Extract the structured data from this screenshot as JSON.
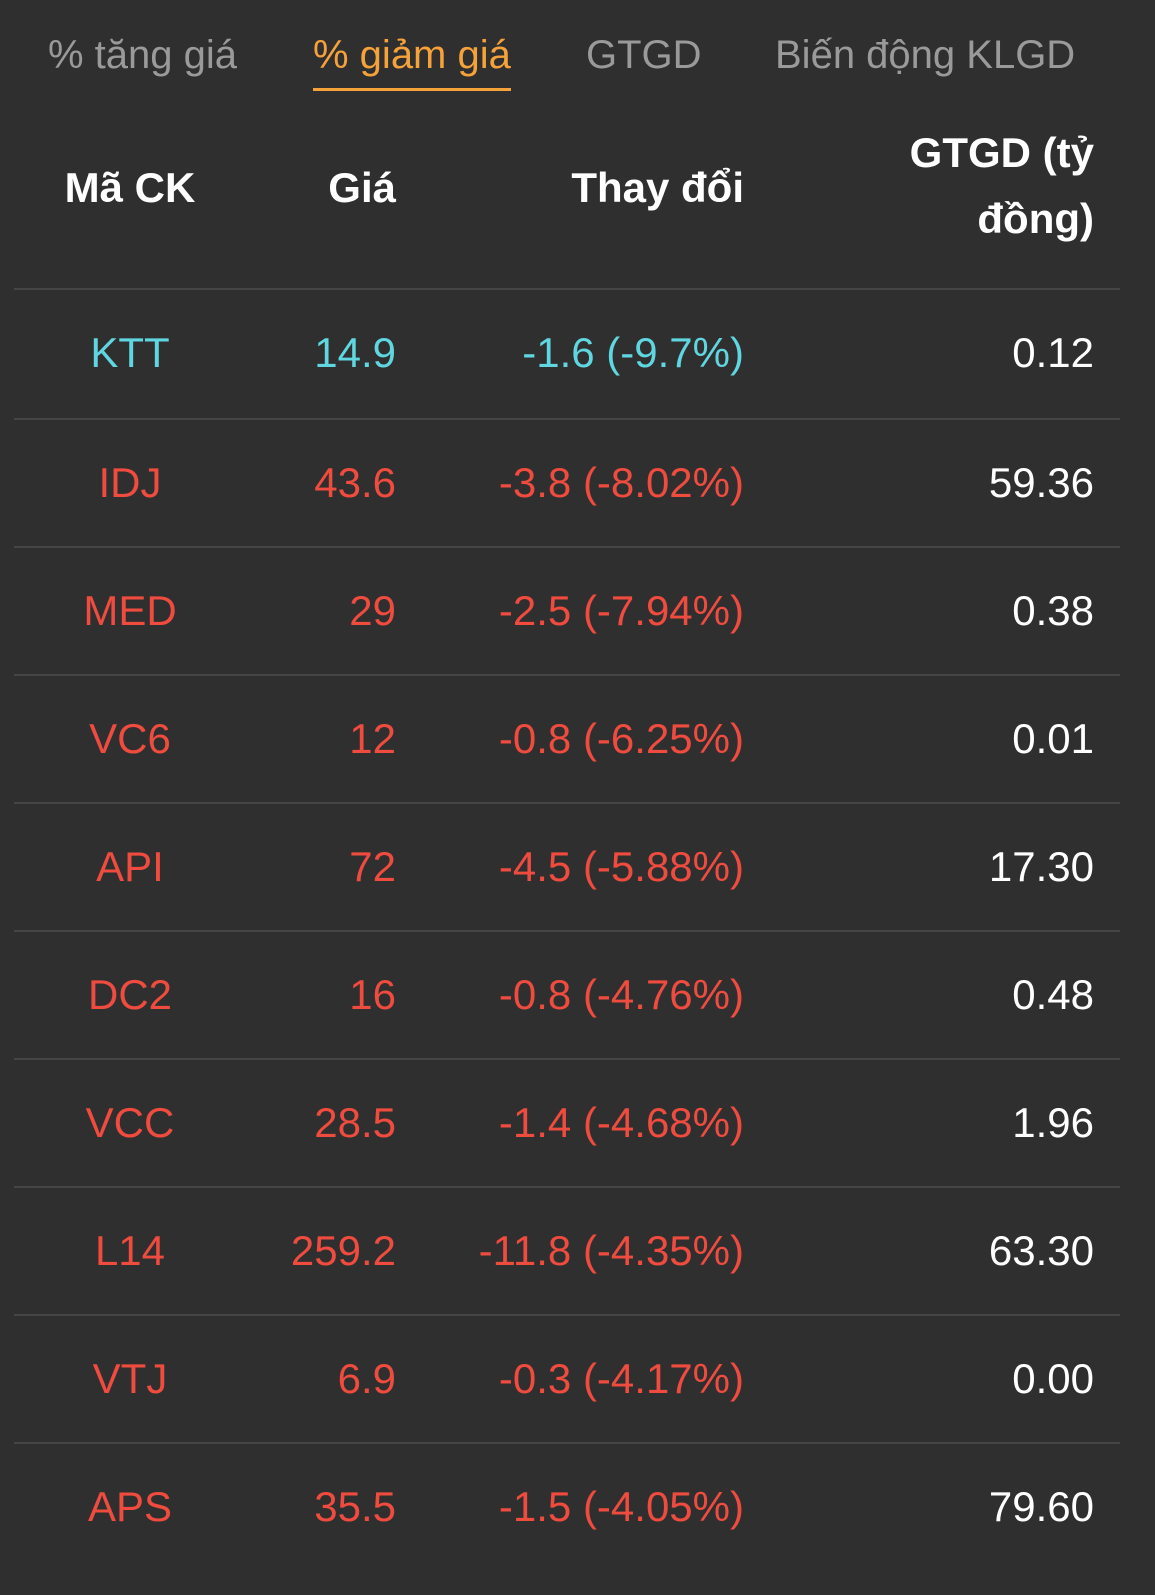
{
  "colors": {
    "background": "#2f2f2f",
    "active_tab": "#f5a23a",
    "inactive_tab": "#9a9a9a",
    "floor_price": "#5fd6e0",
    "decrease": "#ef4b3f",
    "divider": "#454545"
  },
  "tabs": [
    {
      "label": "% tăng giá",
      "active": false
    },
    {
      "label": "% giảm giá",
      "active": true
    },
    {
      "label": "GTGD",
      "active": false
    },
    {
      "label": "Biến động KLGD",
      "active": false
    }
  ],
  "table": {
    "headers": {
      "symbol": "Mã CK",
      "price": "Giá",
      "change": "Thay đổi",
      "value_line1": "GTGD (tỷ",
      "value_line2": "đồng)"
    },
    "rows": [
      {
        "symbol": "KTT",
        "price": "14.9",
        "change": "-1.6 (-9.7%)",
        "value": "0.12",
        "status": "floor"
      },
      {
        "symbol": "IDJ",
        "price": "43.6",
        "change": "-3.8 (-8.02%)",
        "value": "59.36",
        "status": "decrease"
      },
      {
        "symbol": "MED",
        "price": "29",
        "change": "-2.5 (-7.94%)",
        "value": "0.38",
        "status": "decrease"
      },
      {
        "symbol": "VC6",
        "price": "12",
        "change": "-0.8 (-6.25%)",
        "value": "0.01",
        "status": "decrease"
      },
      {
        "symbol": "API",
        "price": "72",
        "change": "-4.5 (-5.88%)",
        "value": "17.30",
        "status": "decrease"
      },
      {
        "symbol": "DC2",
        "price": "16",
        "change": "-0.8 (-4.76%)",
        "value": "0.48",
        "status": "decrease"
      },
      {
        "symbol": "VCC",
        "price": "28.5",
        "change": "-1.4 (-4.68%)",
        "value": "1.96",
        "status": "decrease"
      },
      {
        "symbol": "L14",
        "price": "259.2",
        "change": "-11.8 (-4.35%)",
        "value": "63.30",
        "status": "decrease"
      },
      {
        "symbol": "VTJ",
        "price": "6.9",
        "change": "-0.3 (-4.17%)",
        "value": "0.00",
        "status": "decrease"
      },
      {
        "symbol": "APS",
        "price": "35.5",
        "change": "-1.5 (-4.05%)",
        "value": "79.60",
        "status": "decrease"
      }
    ]
  }
}
